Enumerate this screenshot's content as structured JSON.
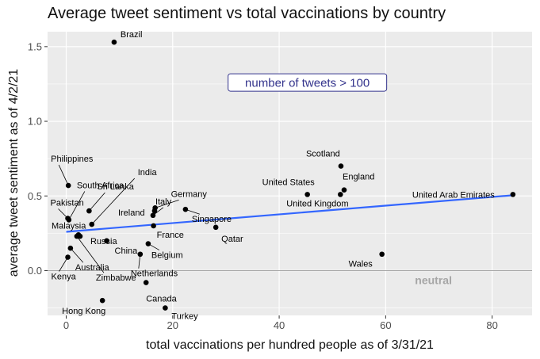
{
  "chart_data": {
    "type": "scatter",
    "title": "Average tweet sentiment vs total vaccinations by country",
    "xlabel": "total vaccinations per hundred people as of 3/31/21",
    "ylabel": "average tweet sentiment as of 4/2/21",
    "xlim": [
      -3.5,
      87.5
    ],
    "ylim": [
      -0.3,
      1.6
    ],
    "xticks": [
      0,
      20,
      40,
      60,
      80
    ],
    "yticks": [
      0.0,
      0.5,
      1.0,
      1.5
    ],
    "ytick_labels": [
      "0.0",
      "0.5",
      "1.0",
      "1.5"
    ],
    "grid": true,
    "points": [
      {
        "name": "Brazil",
        "x": 9.0,
        "y": 1.53
      },
      {
        "name": "Philippines",
        "x": 0.4,
        "y": 0.57
      },
      {
        "name": "South Africa",
        "x": 0.5,
        "y": 0.34
      },
      {
        "name": "Pakistan",
        "x": 0.3,
        "y": 0.35
      },
      {
        "name": "Sri Lanka",
        "x": 4.3,
        "y": 0.4
      },
      {
        "name": "India",
        "x": 4.8,
        "y": 0.31
      },
      {
        "name": "Malaysia",
        "x": 2.3,
        "y": 0.24
      },
      {
        "name": "Russia",
        "x": 2.6,
        "y": 0.23
      },
      {
        "name": "Australia",
        "x": 0.8,
        "y": 0.15
      },
      {
        "name": "Kenya",
        "x": 0.3,
        "y": 0.09
      },
      {
        "name": "Zimbabwe",
        "x": 2.0,
        "y": 0.23
      },
      {
        "name": "China",
        "x": 7.6,
        "y": 0.2
      },
      {
        "name": "Italy",
        "x": 16.3,
        "y": 0.37
      },
      {
        "name": "Germany",
        "x": 16.7,
        "y": 0.42
      },
      {
        "name": "Ireland",
        "x": 16.6,
        "y": 0.4
      },
      {
        "name": "France",
        "x": 16.4,
        "y": 0.3
      },
      {
        "name": "Belgium",
        "x": 15.4,
        "y": 0.18
      },
      {
        "name": "Netherlands",
        "x": 13.9,
        "y": 0.11
      },
      {
        "name": "Canada",
        "x": 15.0,
        "y": -0.08
      },
      {
        "name": "Singapore",
        "x": 22.4,
        "y": 0.41
      },
      {
        "name": "Qatar",
        "x": 28.1,
        "y": 0.29
      },
      {
        "name": "Hong Kong",
        "x": 6.8,
        "y": -0.2
      },
      {
        "name": "Turkey",
        "x": 18.6,
        "y": -0.25
      },
      {
        "name": "United States",
        "x": 45.3,
        "y": 0.51
      },
      {
        "name": "United Kingdom",
        "x": 51.5,
        "y": 0.51
      },
      {
        "name": "Scotland",
        "x": 51.6,
        "y": 0.7
      },
      {
        "name": "England",
        "x": 52.2,
        "y": 0.54
      },
      {
        "name": "Wales",
        "x": 59.3,
        "y": 0.11
      },
      {
        "name": "United Arab Emirates",
        "x": 83.9,
        "y": 0.51
      }
    ],
    "trendline": {
      "x": [
        0,
        84
      ],
      "y": [
        0.26,
        0.505
      ]
    },
    "reference_line": {
      "y": 0,
      "label": "neutral"
    },
    "annotation": "number of tweets > 100",
    "colors": {
      "panel": "#ebebeb",
      "grid": "#ffffff",
      "point": "#000000",
      "trend": "#3366ff",
      "reference": "#a6a6a6",
      "neutral_text": "#a6a6a6",
      "annotation_border": "#33338c",
      "annotation_text": "#33338c"
    }
  }
}
